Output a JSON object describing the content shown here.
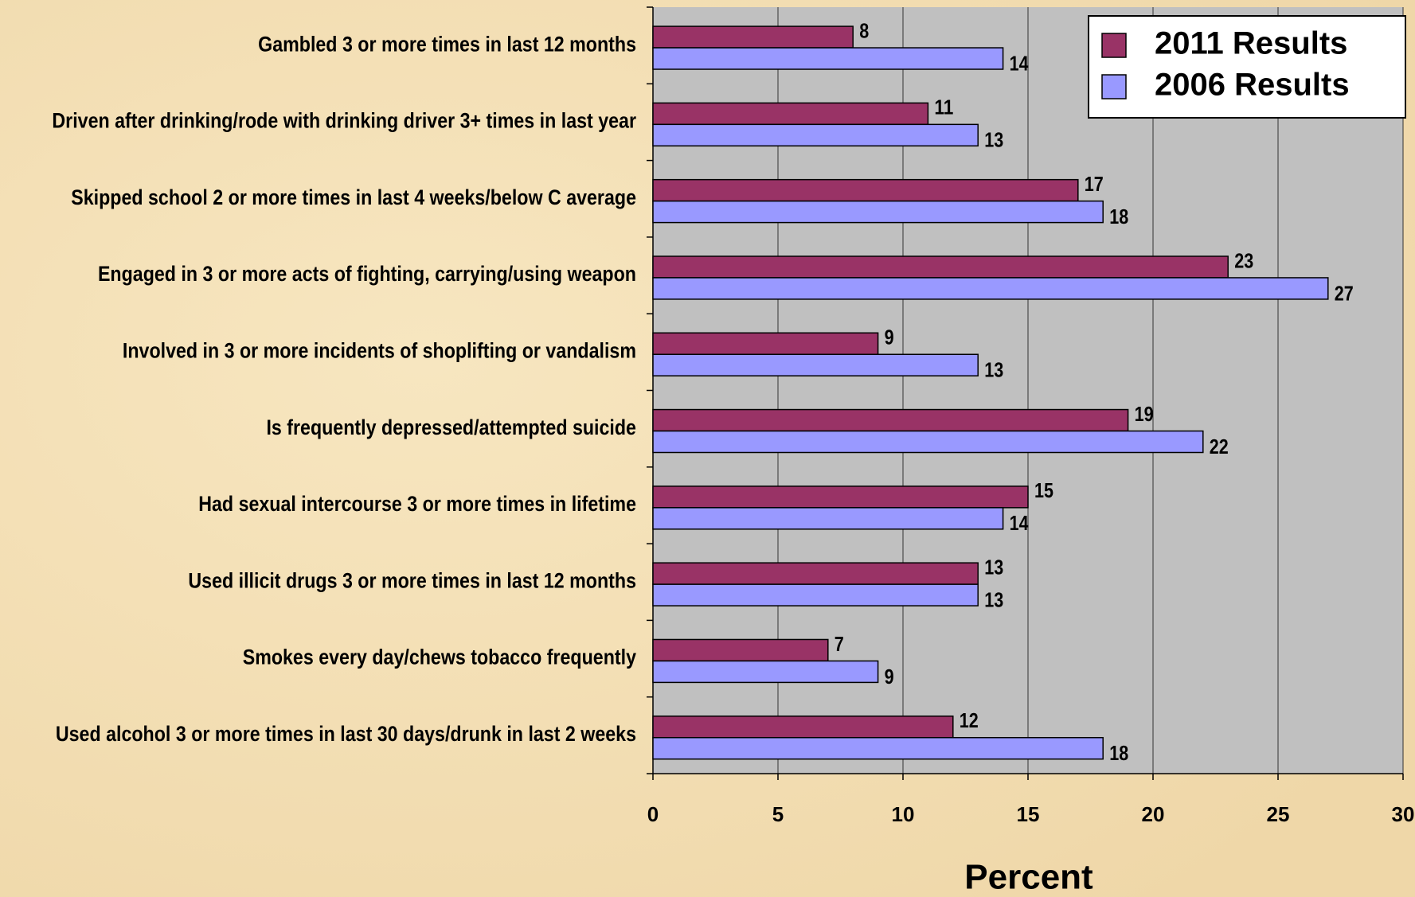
{
  "chart_data": {
    "type": "bar",
    "orientation": "horizontal",
    "categories": [
      "Gambled 3 or more times in last 12 months",
      "Driven after drinking/rode with drinking driver 3+ times in last year",
      "Skipped school 2 or more times in last 4 weeks/below C average",
      "Engaged in 3 or more acts of fighting, carrying/using weapon",
      "Involved in 3 or more incidents of shoplifting or vandalism",
      "Is frequently depressed/attempted suicide",
      "Had sexual intercourse 3 or more times in lifetime",
      "Used illicit drugs 3 or more times in last 12 months",
      "Smokes every day/chews tobacco frequently",
      "Used alcohol 3 or more times in last 30 days/drunk in last 2 weeks"
    ],
    "series": [
      {
        "name": "2011 Results",
        "color": "#993366",
        "values": [
          8,
          11,
          17,
          23,
          9,
          19,
          15,
          13,
          7,
          12
        ]
      },
      {
        "name": "2006 Results",
        "color": "#9999ff",
        "values": [
          14,
          13,
          18,
          27,
          13,
          22,
          14,
          13,
          9,
          18
        ]
      }
    ],
    "xlabel": "Percent",
    "xlim": [
      0,
      30
    ],
    "xticks": [
      0,
      5,
      10,
      15,
      20,
      25,
      30
    ],
    "grid": true,
    "legend": "upper right"
  }
}
